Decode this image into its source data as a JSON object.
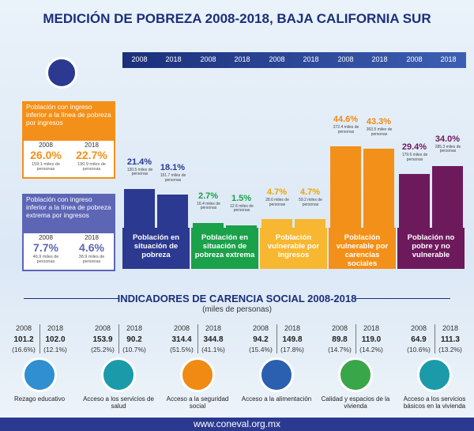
{
  "title": "MEDICIÓN DE POBREZA 2008-2018, BAJA CALIFORNIA SUR",
  "years": [
    "2008",
    "2018"
  ],
  "income": [
    {
      "label": "Población con ingreso inferior a la línea de pobreza por ingresos",
      "color": "#f39019",
      "value_labels": [
        "26.0%",
        "22.7%"
      ],
      "persons": [
        "159.1 miles de personas",
        "190.9 miles de personas"
      ]
    },
    {
      "label": "Población con ingreso inferior a la línea de pobreza extrema por ingresos",
      "color": "#5d66b5",
      "value_labels": [
        "7.7%",
        "4.6%"
      ],
      "persons": [
        "46.9 miles de personas",
        "38.9 miles de personas"
      ]
    }
  ],
  "poverty": {
    "groups": [
      {
        "label": "Población en situación de pobreza",
        "color": "#2b3990",
        "text": "#2b3990",
        "values": [
          21.4,
          18.1
        ],
        "value_labels": [
          "21.4%",
          "18.1%"
        ],
        "persons": [
          "130.5 miles de personas",
          "151.7 miles de personas"
        ]
      },
      {
        "label": "Población en situación de pobreza extrema",
        "color": "#1aa14a",
        "text": "#1aa14a",
        "values": [
          2.7,
          1.5
        ],
        "value_labels": [
          "2.7%",
          "1.5%"
        ],
        "persons": [
          "16.4 miles de personas",
          "12.6 miles de personas"
        ]
      },
      {
        "label": "Población vulnerable por ingresos",
        "color": "#f7b731",
        "text": "#f0a500",
        "values": [
          4.7,
          4.7
        ],
        "value_labels": [
          "4.7%",
          "4.7%"
        ],
        "persons": [
          "28.6 miles de personas",
          "59.2 miles de personas"
        ]
      },
      {
        "label": "Población vulnerable por carencias sociales",
        "color": "#f39019",
        "text": "#f08a12",
        "values": [
          44.6,
          43.3
        ],
        "value_labels": [
          "44.6%",
          "43.3%"
        ],
        "persons": [
          "272.4 miles de personas",
          "363.5 miles de personas"
        ]
      },
      {
        "label": "Población no pobre y no vulnerable",
        "color": "#6d1a5c",
        "text": "#6d1a5c",
        "values": [
          29.4,
          34.0
        ],
        "value_labels": [
          "29.4%",
          "34.0%"
        ],
        "persons": [
          "179.6 miles de personas",
          "285.3 miles de personas"
        ]
      }
    ]
  },
  "indicators": {
    "title": "INDICADORES DE CARENCIA SOCIAL 2008-2018",
    "subtitle": "(miles de personas)",
    "items": [
      {
        "label": "Rezago educativo",
        "color": "#2f8fd0",
        "values": [
          "101.2",
          "102.0"
        ],
        "shares": [
          "(16.6%)",
          "(12.1%)"
        ]
      },
      {
        "label": "Acceso a los servicios de salud",
        "color": "#1b9aaa",
        "values": [
          "153.9",
          "90.2"
        ],
        "shares": [
          "(25.2%)",
          "(10.7%)"
        ]
      },
      {
        "label": "Acceso a la seguridad social",
        "color": "#f08a12",
        "values": [
          "314.4",
          "344.8"
        ],
        "shares": [
          "(51.5%)",
          "(41.1%)"
        ]
      },
      {
        "label": "Acceso a la alimentación",
        "color": "#2b5fb0",
        "values": [
          "94.2",
          "149.8"
        ],
        "shares": [
          "(15.4%)",
          "(17.8%)"
        ]
      },
      {
        "label": "Calidad y espacios de la vivienda",
        "color": "#3aa64a",
        "values": [
          "89.8",
          "119.0"
        ],
        "shares": [
          "(14.7%)",
          "(14.2%)"
        ]
      },
      {
        "label": "Acceso a los servicios básicos en la vivienda",
        "color": "#1b9aaa",
        "values": [
          "64.9",
          "111.3"
        ],
        "shares": [
          "(10.6%)",
          "(13.2%)"
        ]
      }
    ]
  },
  "footer": "www.coneval.org.mx"
}
